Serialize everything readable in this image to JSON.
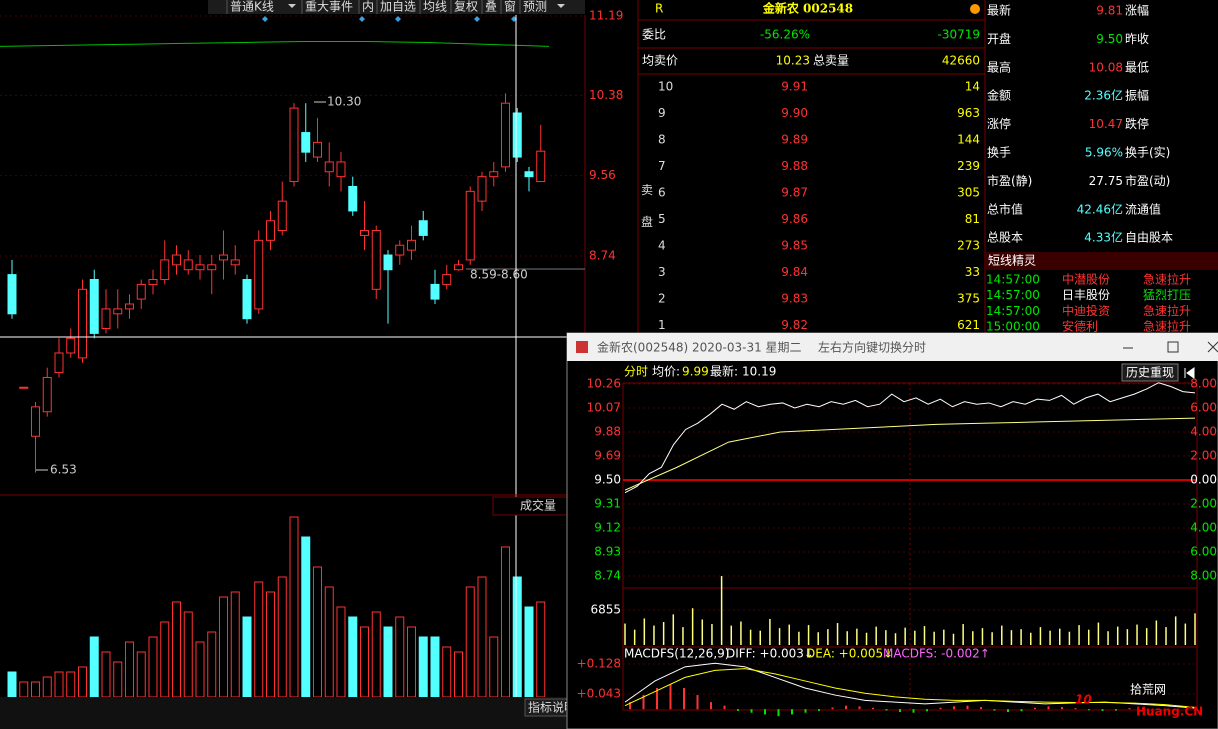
{
  "toolbar": [
    "普通K线",
    "重大事件",
    "内",
    "加自选",
    "均线",
    "复权",
    "叠",
    "窗",
    "预测"
  ],
  "kline": {
    "yticks": [
      11.19,
      10.38,
      9.56,
      8.74
    ],
    "candles": [
      [
        8.55,
        8.15,
        8.7,
        8.1
      ],
      [
        7.4,
        7.4,
        7.4,
        7.4
      ],
      [
        6.9,
        7.2,
        7.25,
        6.53
      ],
      [
        7.15,
        7.5,
        7.6,
        7.1
      ],
      [
        7.55,
        7.75,
        7.9,
        7.5
      ],
      [
        7.75,
        7.9,
        8.0,
        7.7
      ],
      [
        7.7,
        8.4,
        8.5,
        7.65
      ],
      [
        8.5,
        7.95,
        8.6,
        7.9
      ],
      [
        8.0,
        8.2,
        8.4,
        7.95
      ],
      [
        8.15,
        8.2,
        8.4,
        8.0
      ],
      [
        8.2,
        8.25,
        8.35,
        8.1
      ],
      [
        8.3,
        8.45,
        8.5,
        8.2
      ],
      [
        8.45,
        8.5,
        8.6,
        8.35
      ],
      [
        8.5,
        8.7,
        8.9,
        8.45
      ],
      [
        8.65,
        8.75,
        8.85,
        8.55
      ],
      [
        8.6,
        8.7,
        8.8,
        8.55
      ],
      [
        8.6,
        8.65,
        8.75,
        8.5
      ],
      [
        8.6,
        8.65,
        8.75,
        8.35
      ],
      [
        8.7,
        8.75,
        9.0,
        8.5
      ],
      [
        8.65,
        8.7,
        8.85,
        8.55
      ],
      [
        8.5,
        8.1,
        8.55,
        8.05
      ],
      [
        8.2,
        8.9,
        9.0,
        8.15
      ],
      [
        8.9,
        9.1,
        9.2,
        8.8
      ],
      [
        9.0,
        9.3,
        9.5,
        8.95
      ],
      [
        9.5,
        10.25,
        10.3,
        9.45
      ],
      [
        10.0,
        9.8,
        10.3,
        9.7
      ],
      [
        9.75,
        9.9,
        10.15,
        9.7
      ],
      [
        9.6,
        9.7,
        9.9,
        9.45
      ],
      [
        9.55,
        9.7,
        9.8,
        9.4
      ],
      [
        9.45,
        9.2,
        9.55,
        9.15
      ],
      [
        8.95,
        9.0,
        9.3,
        8.8
      ],
      [
        8.4,
        9.0,
        9.05,
        8.3
      ],
      [
        8.75,
        8.6,
        8.8,
        8.05
      ],
      [
        8.75,
        8.85,
        8.9,
        8.65
      ],
      [
        8.8,
        8.9,
        9.05,
        8.7
      ],
      [
        9.1,
        8.95,
        9.2,
        8.9
      ],
      [
        8.45,
        8.3,
        8.6,
        8.25
      ],
      [
        8.45,
        8.55,
        8.65,
        8.4
      ],
      [
        8.6,
        8.65,
        8.7,
        8.59
      ],
      [
        8.7,
        9.4,
        9.45,
        8.65
      ],
      [
        9.3,
        9.55,
        9.6,
        9.2
      ],
      [
        9.55,
        9.6,
        9.7,
        9.45
      ],
      [
        9.65,
        10.3,
        10.4,
        9.6
      ],
      [
        10.2,
        9.75,
        10.25,
        9.7
      ],
      [
        9.6,
        9.55,
        9.65,
        9.4
      ],
      [
        9.5,
        9.81,
        10.08,
        9.5
      ]
    ],
    "ma_long": [
      10.88,
      10.89,
      10.9,
      10.91,
      10.92,
      10.93,
      10.93,
      10.92,
      10.9,
      10.88
    ],
    "volume": [
      25,
      15,
      15,
      20,
      25,
      25,
      30,
      60,
      45,
      35,
      55,
      45,
      60,
      75,
      95,
      85,
      55,
      65,
      100,
      105,
      80,
      115,
      105,
      120,
      180,
      160,
      130,
      110,
      90,
      80,
      70,
      85,
      70,
      80,
      70,
      60,
      60,
      50,
      45,
      110,
      120,
      60,
      150,
      120,
      90,
      95
    ],
    "annotations": [
      "10.30",
      "6.53",
      "8.59-8.60"
    ],
    "volume_title": "成交量",
    "indicator_button": "指标说明"
  },
  "quote": {
    "flag": "R",
    "title": "金新农 002548",
    "ratio": {
      "label": "委比",
      "percent": "-56.26%",
      "value": -30719
    },
    "avg": {
      "label": "均卖价",
      "value": "10.23",
      "total_label": "总卖量",
      "total": 42660
    },
    "side": "卖盘",
    "levels": [
      [
        10,
        "9.91",
        14
      ],
      [
        9,
        "9.90",
        963
      ],
      [
        8,
        "9.89",
        144
      ],
      [
        7,
        "9.88",
        239
      ],
      [
        6,
        "9.87",
        305
      ],
      [
        5,
        "9.86",
        81
      ],
      [
        4,
        "9.85",
        273
      ],
      [
        3,
        "9.84",
        33
      ],
      [
        2,
        "9.83",
        375
      ],
      [
        1,
        "9.82",
        621
      ]
    ]
  },
  "stats": [
    {
      "label": "最新",
      "value": "9.81",
      "label2": "涨幅",
      "color": "#ff3232"
    },
    {
      "label": "开盘",
      "value": "9.50",
      "label2": "昨收",
      "color": "#00e600"
    },
    {
      "label": "最高",
      "value": "10.08",
      "label2": "最低",
      "color": "#ff3232"
    },
    {
      "label": "金额",
      "value": "2.36亿",
      "label2": "振幅",
      "color": "#54ffff"
    },
    {
      "label": "涨停",
      "value": "10.47",
      "label2": "跌停",
      "color": "#ff3232"
    },
    {
      "label": "换手",
      "value": "5.96%",
      "label2": "换手(实)",
      "color": "#54ffff"
    },
    {
      "label": "市盈(静)",
      "value": "27.75",
      "label2": "市盈(动)",
      "color": "#ffffff"
    },
    {
      "label": "总市值",
      "value": "42.46亿",
      "label2": "流通值",
      "color": "#54ffff"
    },
    {
      "label": "总股本",
      "value": "4.33亿",
      "label2": "自由股本",
      "color": "#54ffff"
    }
  ],
  "sprite": {
    "title": "短线精灵",
    "rows": [
      {
        "time": "14:57:00",
        "name": "中潜股份",
        "signal": "急速拉升",
        "color": "#ff3232",
        "name_color": "#ff3232"
      },
      {
        "time": "14:57:00",
        "name": "日丰股份",
        "signal": "猛烈打压",
        "color": "#00e600",
        "name_color": "#ffffff"
      },
      {
        "time": "14:57:00",
        "name": "中迪投资",
        "signal": "急速拉升",
        "color": "#ff3232",
        "name_color": "#ff3232"
      },
      {
        "time": "15:00:00",
        "name": "安德利",
        "signal": "急速拉升",
        "color": "#ff3232",
        "name_color": "#ff3232"
      }
    ]
  },
  "popup": {
    "title": "金新农(002548) 2020-03-31 星期二",
    "hint": "左右方向键切换分时",
    "header": {
      "mode": "分时",
      "avg_label": "均价:",
      "avg": "9.99",
      "last_label": "最新:",
      "last": "10.19"
    },
    "replay": "历史重现",
    "yticks": [
      10.26,
      10.07,
      9.88,
      9.69,
      {
        "value": 9.5,
        "label": "9.50"
      },
      9.31,
      9.12,
      8.93,
      8.74
    ],
    "pct_ticks": [
      "8.00",
      "6.00",
      "4.00",
      "2.00",
      "0.00",
      "2.00",
      "4.00",
      "6.00",
      "8.00"
    ],
    "price": [
      9.4,
      9.45,
      9.55,
      9.6,
      9.78,
      9.9,
      9.95,
      10.02,
      10.1,
      10.06,
      10.12,
      10.08,
      10.1,
      10.11,
      10.07,
      10.1,
      10.08,
      10.12,
      10.1,
      10.13,
      10.08,
      10.1,
      10.18,
      10.12,
      10.15,
      10.1,
      10.14,
      10.08,
      10.12,
      10.1,
      10.11,
      10.08,
      10.12,
      10.1,
      10.14,
      10.13,
      10.17,
      10.1,
      10.15,
      10.18,
      10.12,
      10.15,
      10.18,
      10.22,
      10.27,
      10.24,
      10.2,
      10.19
    ],
    "avg_line": [
      9.42,
      9.6,
      9.8,
      9.88,
      9.9,
      9.92,
      9.94,
      9.95,
      9.96,
      9.97,
      9.98,
      9.99
    ],
    "vol_tick": 6855,
    "vol_ylim": [
      0,
      10770
    ],
    "volume": [
      4200,
      3000,
      5200,
      3800,
      4500,
      6000,
      3500,
      7200,
      5000,
      4100,
      13500,
      3800,
      4600,
      3000,
      2800,
      5100,
      3300,
      4000,
      2600,
      3900,
      2500,
      3100,
      4300,
      2700,
      3200,
      2400,
      3600,
      2900,
      2300,
      3400,
      2800,
      3700,
      2600,
      3000,
      2200,
      4100,
      2700,
      3300,
      2500,
      3800,
      2900,
      3100,
      2400,
      3500,
      2800,
      3200,
      2600,
      3900,
      3000,
      4400,
      2700,
      3600,
      3100,
      4000,
      3300,
      4800,
      3500,
      5600,
      4200,
      6200
    ],
    "macd_title": "MACDFS(12,26,9)",
    "diff_label": "DIFF: +0.003↓",
    "dea_label": "DEA: +0.005↓",
    "macd_label": "MACDFS: -0.002↑",
    "macd_ticks": [
      {
        "value": 0.128,
        "label": "+0.128"
      },
      {
        "value": 0.043,
        "label": "+0.043"
      }
    ],
    "macd_bars": [
      0.02,
      0.04,
      0.06,
      0.07,
      0.06,
      0.04,
      0.02,
      0.01,
      -0.005,
      -0.01,
      -0.015,
      -0.02,
      -0.015,
      -0.01,
      -0.005,
      0.005,
      0.01,
      0.008,
      0.004,
      -0.004,
      -0.008,
      -0.01,
      -0.006,
      0.004,
      0.008,
      0.01,
      0.006,
      -0.004,
      -0.008,
      -0.006,
      0.004,
      0.008,
      0.006,
      0.003,
      -0.003,
      -0.005,
      -0.004,
      0.003,
      0.004,
      -0.002
    ],
    "diff": [
      0.02,
      0.08,
      0.12,
      0.13,
      0.12,
      0.09,
      0.06,
      0.04,
      0.025,
      0.02,
      0.015,
      0.02,
      0.025,
      0.02,
      0.015,
      0.018,
      0.02,
      0.015,
      0.01,
      0.003
    ],
    "dea": [
      0.01,
      0.05,
      0.09,
      0.11,
      0.115,
      0.1,
      0.08,
      0.06,
      0.045,
      0.035,
      0.028,
      0.025,
      0.025,
      0.022,
      0.02,
      0.019,
      0.019,
      0.017,
      0.013,
      0.005
    ]
  },
  "watermark": {
    "num": "10",
    "name": "拾荒网",
    "site": "Huang.CN"
  }
}
